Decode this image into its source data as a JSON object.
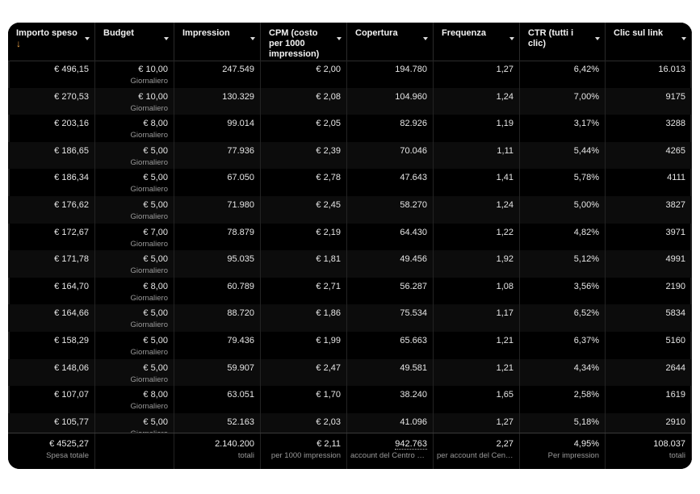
{
  "table": {
    "columns": [
      {
        "label": "Importo speso",
        "sorted": "desc"
      },
      {
        "label": "Budget"
      },
      {
        "label": "Impression"
      },
      {
        "label": "CPM (costo per 1000 impression)"
      },
      {
        "label": "Copertura"
      },
      {
        "label": "Frequenza"
      },
      {
        "label": "CTR (tutti i clic)"
      },
      {
        "label": "Clic sul link"
      }
    ],
    "sort_icon": "arrow-down-icon",
    "budget_period": "Giornaliero",
    "rows": [
      {
        "spent": "€ 496,15",
        "budget": "€ 10,00",
        "impressions": "247.549",
        "cpm": "€ 2,00",
        "reach": "194.780",
        "frequency": "1,27",
        "ctr": "6,42%",
        "clicks": "16.013"
      },
      {
        "spent": "€ 270,53",
        "budget": "€ 10,00",
        "impressions": "130.329",
        "cpm": "€ 2,08",
        "reach": "104.960",
        "frequency": "1,24",
        "ctr": "7,00%",
        "clicks": "9175"
      },
      {
        "spent": "€ 203,16",
        "budget": "€ 8,00",
        "impressions": "99.014",
        "cpm": "€ 2,05",
        "reach": "82.926",
        "frequency": "1,19",
        "ctr": "3,17%",
        "clicks": "3288"
      },
      {
        "spent": "€ 186,65",
        "budget": "€ 5,00",
        "impressions": "77.936",
        "cpm": "€ 2,39",
        "reach": "70.046",
        "frequency": "1,11",
        "ctr": "5,44%",
        "clicks": "4265"
      },
      {
        "spent": "€ 186,34",
        "budget": "€ 5,00",
        "impressions": "67.050",
        "cpm": "€ 2,78",
        "reach": "47.643",
        "frequency": "1,41",
        "ctr": "5,78%",
        "clicks": "4111"
      },
      {
        "spent": "€ 176,62",
        "budget": "€ 5,00",
        "impressions": "71.980",
        "cpm": "€ 2,45",
        "reach": "58.270",
        "frequency": "1,24",
        "ctr": "5,00%",
        "clicks": "3827"
      },
      {
        "spent": "€ 172,67",
        "budget": "€ 7,00",
        "impressions": "78.879",
        "cpm": "€ 2,19",
        "reach": "64.430",
        "frequency": "1,22",
        "ctr": "4,82%",
        "clicks": "3971"
      },
      {
        "spent": "€ 171,78",
        "budget": "€ 5,00",
        "impressions": "95.035",
        "cpm": "€ 1,81",
        "reach": "49.456",
        "frequency": "1,92",
        "ctr": "5,12%",
        "clicks": "4991"
      },
      {
        "spent": "€ 164,70",
        "budget": "€ 8,00",
        "impressions": "60.789",
        "cpm": "€ 2,71",
        "reach": "56.287",
        "frequency": "1,08",
        "ctr": "3,56%",
        "clicks": "2190"
      },
      {
        "spent": "€ 164,66",
        "budget": "€ 5,00",
        "impressions": "88.720",
        "cpm": "€ 1,86",
        "reach": "75.534",
        "frequency": "1,17",
        "ctr": "6,52%",
        "clicks": "5834"
      },
      {
        "spent": "€ 158,29",
        "budget": "€ 5,00",
        "impressions": "79.436",
        "cpm": "€ 1,99",
        "reach": "65.663",
        "frequency": "1,21",
        "ctr": "6,37%",
        "clicks": "5160"
      },
      {
        "spent": "€ 148,06",
        "budget": "€ 5,00",
        "impressions": "59.907",
        "cpm": "€ 2,47",
        "reach": "49.581",
        "frequency": "1,21",
        "ctr": "4,34%",
        "clicks": "2644"
      },
      {
        "spent": "€ 107,07",
        "budget": "€ 8,00",
        "impressions": "63.051",
        "cpm": "€ 1,70",
        "reach": "38.240",
        "frequency": "1,65",
        "ctr": "2,58%",
        "clicks": "1619"
      },
      {
        "spent": "€ 105,77",
        "budget": "€ 5,00",
        "impressions": "52.163",
        "cpm": "€ 2,03",
        "reach": "41.096",
        "frequency": "1,27",
        "ctr": "5,18%",
        "clicks": "2910"
      }
    ],
    "totals": [
      {
        "value": "€ 4525,27",
        "sub": "Spesa totale"
      },
      {
        "value": "",
        "sub": ""
      },
      {
        "value": "2.140.200",
        "sub": "totali"
      },
      {
        "value": "€ 2,11",
        "sub": "per 1000 impression"
      },
      {
        "value": "942.763",
        "sub": "account del Centro g..."
      },
      {
        "value": "2,27",
        "sub": "per account del Cent..."
      },
      {
        "value": "4,95%",
        "sub": "Per impression"
      },
      {
        "value": "108.037",
        "sub": "totali"
      }
    ]
  },
  "colors": {
    "background": "#000000",
    "accent": "#f0a54a",
    "text": "#e6e6e6",
    "muted": "#9a9a9a"
  }
}
